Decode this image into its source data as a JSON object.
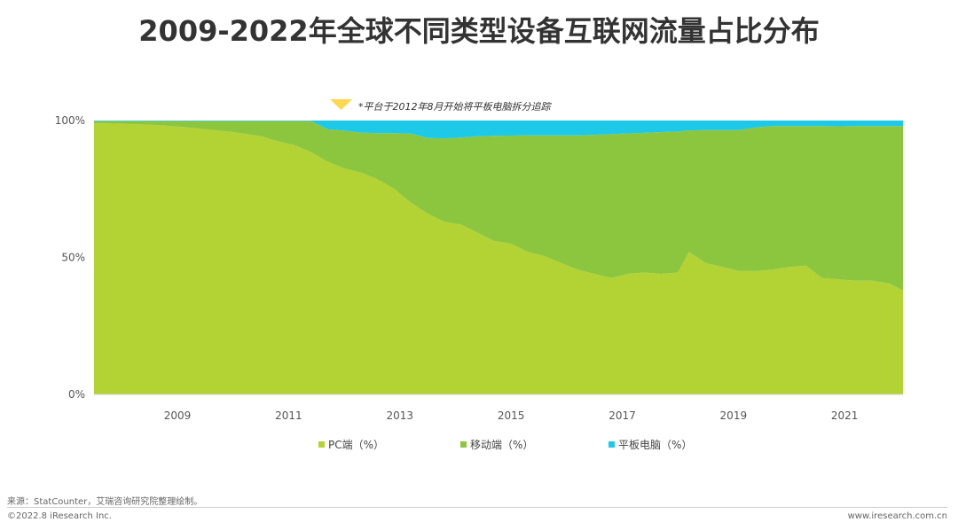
{
  "title": "2009-2022年全球不同类型设备互联网流量占比分布",
  "annotation": "*平台于2012年8月开始将平板电脑拆分追踪",
  "footer": {
    "source": "来源：StatCounter，艾瑞咨询研究院整理绘制。",
    "copyright": "©2022.8 iResearch Inc.",
    "url": "www.iresearch.com.cn"
  },
  "legend": [
    {
      "label": "PC端（%）",
      "color": "#b3d335"
    },
    {
      "label": "移动端（%）",
      "color": "#8cc63f"
    },
    {
      "label": "平板电脑（%）",
      "color": "#1ec9e8"
    }
  ],
  "chart_data": {
    "type": "area",
    "stacked": true,
    "title": "2009-2022年全球不同类型设备互联网流量占比分布",
    "xlabel": "",
    "ylabel": "",
    "x_tick_labels": [
      "2009",
      "2011",
      "2013",
      "2015",
      "2017",
      "2019",
      "2021"
    ],
    "y_tick_labels": [
      "0%",
      "50%",
      "100%"
    ],
    "ylim": [
      0,
      100
    ],
    "xlim": [
      2008.0,
      2022.55
    ],
    "grid": false,
    "legend_position": "bottom",
    "x": [
      2008.0,
      2008.5,
      2009.0,
      2009.5,
      2010.0,
      2010.5,
      2011.0,
      2011.3,
      2011.6,
      2011.9,
      2012.2,
      2012.5,
      2012.8,
      2013.1,
      2013.4,
      2013.7,
      2014.0,
      2014.3,
      2014.6,
      2014.9,
      2015.2,
      2015.5,
      2015.8,
      2016.1,
      2016.4,
      2016.7,
      2017.0,
      2017.3,
      2017.6,
      2017.9,
      2018.2,
      2018.5,
      2018.7,
      2019.0,
      2019.3,
      2019.6,
      2019.9,
      2020.2,
      2020.5,
      2020.8,
      2021.1,
      2021.4,
      2021.7,
      2022.0,
      2022.3,
      2022.55
    ],
    "series": [
      {
        "name": "PC端（%）",
        "color": "#b3d335",
        "values": [
          99.0,
          98.8,
          98.5,
          97.8,
          96.8,
          95.8,
          94.3,
          92.5,
          91.0,
          88.5,
          85.0,
          82.5,
          81.0,
          78.5,
          75.0,
          70.0,
          66.0,
          63.0,
          62.0,
          59.0,
          56.0,
          55.0,
          52.0,
          50.5,
          48.0,
          45.5,
          44.0,
          42.5,
          44.0,
          44.5,
          44.0,
          44.5,
          52.0,
          48.0,
          46.5,
          45.0,
          45.0,
          45.5,
          46.5,
          47.0,
          42.5,
          42.0,
          41.5,
          41.5,
          40.5,
          38.0
        ]
      },
      {
        "name": "移动端（%）",
        "color": "#8cc63f",
        "values": [
          0.8,
          1.0,
          1.3,
          2.0,
          3.0,
          4.0,
          5.5,
          7.3,
          8.8,
          11.3,
          11.8,
          13.8,
          14.6,
          16.9,
          20.4,
          25.2,
          27.6,
          30.5,
          31.8,
          35.2,
          38.4,
          39.5,
          42.6,
          44.1,
          46.6,
          49.1,
          50.8,
          52.5,
          51.3,
          51.0,
          51.8,
          51.5,
          44.4,
          48.5,
          50.0,
          51.5,
          52.5,
          52.5,
          51.5,
          51.0,
          55.5,
          55.9,
          56.5,
          56.5,
          57.5,
          60.0
        ]
      },
      {
        "name": "平板电脑（%）",
        "color": "#1ec9e8",
        "values": [
          0.2,
          0.2,
          0.2,
          0.2,
          0.2,
          0.2,
          0.2,
          0.2,
          0.2,
          0.2,
          3.2,
          3.7,
          4.4,
          4.6,
          4.6,
          4.8,
          6.4,
          6.5,
          6.2,
          5.8,
          5.6,
          5.5,
          5.4,
          5.4,
          5.4,
          5.4,
          5.2,
          5.0,
          4.7,
          4.5,
          4.2,
          4.0,
          3.6,
          3.5,
          3.5,
          3.5,
          2.5,
          2.0,
          2.0,
          2.0,
          2.0,
          2.1,
          2.0,
          2.0,
          2.0,
          2.0
        ]
      }
    ]
  }
}
